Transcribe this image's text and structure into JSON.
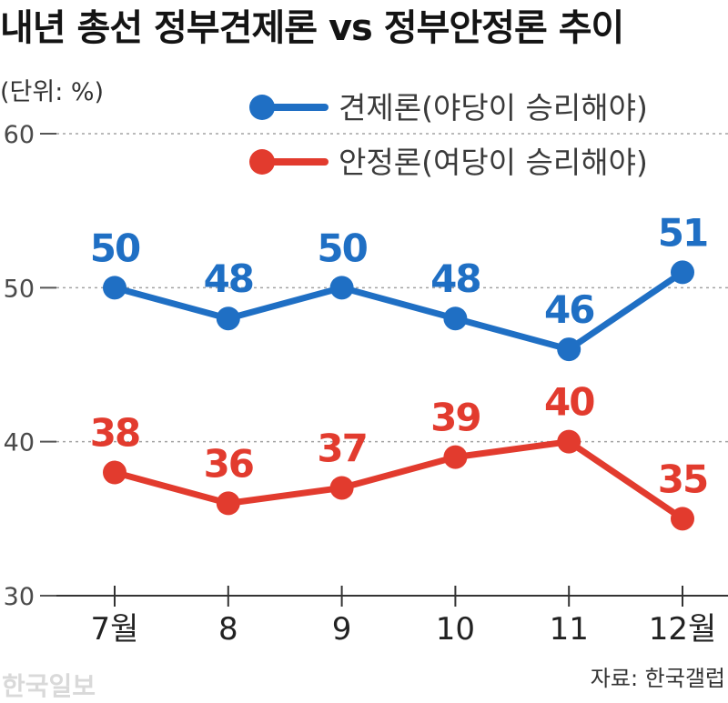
{
  "chart_data": {
    "type": "line",
    "title": "내년 총선 정부견제론 vs 정부안정론 추이",
    "unit": "(단위: %)",
    "categories": [
      "7월",
      "8",
      "9",
      "10",
      "11",
      "12월"
    ],
    "ylim": [
      30,
      60
    ],
    "yticks": [
      30,
      40,
      50,
      60
    ],
    "grid": true,
    "legend_position": "top-right",
    "data_labels": true,
    "series": [
      {
        "name": "견제론(야당이 승리해야)",
        "color": "#1f6fc4",
        "values": [
          50,
          48,
          50,
          48,
          46,
          51
        ]
      },
      {
        "name": "안정론(여당이 승리해야)",
        "color": "#e23b2e",
        "values": [
          38,
          36,
          37,
          39,
          40,
          35
        ]
      }
    ]
  },
  "source": "자료: 한국갤럽",
  "watermark": "한국일보"
}
